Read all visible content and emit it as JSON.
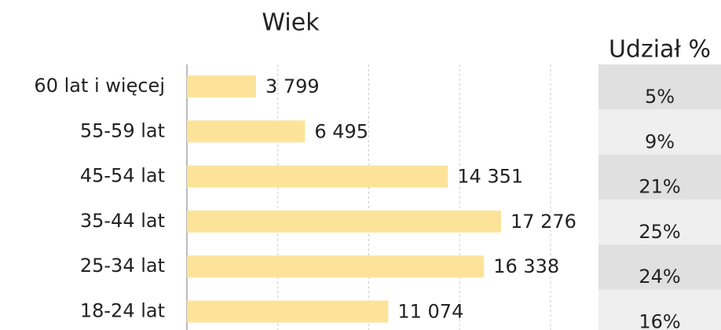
{
  "chart_data": {
    "type": "bar",
    "orientation": "horizontal",
    "title": "Wiek",
    "categories": [
      "60 lat i więcej",
      "55-59 lat",
      "45-54 lat",
      "35-44 lat",
      "25-34 lat",
      "18-24 lat"
    ],
    "values": [
      3799,
      6495,
      14351,
      17276,
      16338,
      11074
    ],
    "value_labels": [
      "3 799",
      "6 495",
      "14 351",
      "17 276",
      "16 338",
      "11 074"
    ],
    "color": "#fde39a",
    "xlim": [
      0,
      20000
    ],
    "xticks": [
      0,
      5000,
      10000,
      15000,
      20000
    ],
    "grid": true
  },
  "table": {
    "header": "Udział %",
    "values": [
      5,
      9,
      21,
      25,
      24,
      16
    ],
    "value_labels": [
      "5%",
      "9%",
      "21%",
      "25%",
      "24%",
      "16%"
    ]
  }
}
